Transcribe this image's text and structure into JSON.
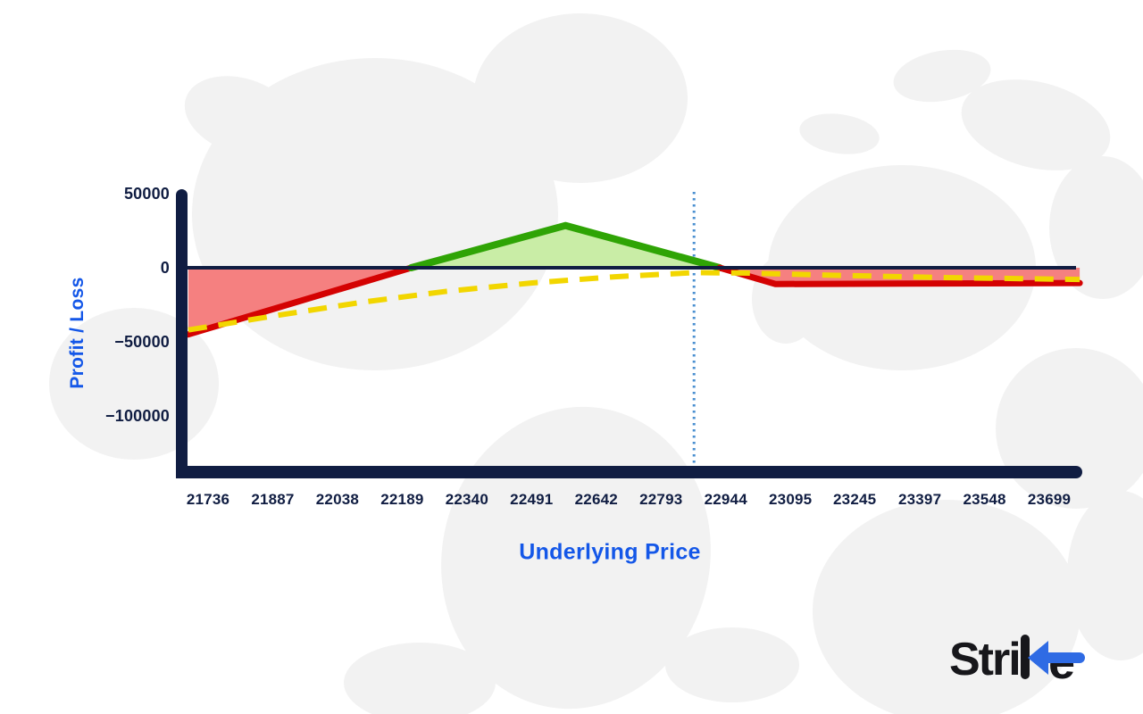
{
  "chart_data": {
    "type": "line",
    "title": "",
    "xlabel": "Underlying Price",
    "ylabel": "Profit / Loss",
    "x_ticks": [
      "21736",
      "21887",
      "22038",
      "22189",
      "22340",
      "22491",
      "22642",
      "22793",
      "22944",
      "23095",
      "23245",
      "23397",
      "23548",
      "23699"
    ],
    "x_tick_values": [
      21736,
      21887,
      22038,
      22189,
      22340,
      22491,
      22642,
      22793,
      22944,
      23095,
      23245,
      23397,
      23548,
      23699
    ],
    "y_ticks": [
      {
        "label": "50000",
        "value": 50000
      },
      {
        "label": "0",
        "value": 0
      },
      {
        "label": "−50000",
        "value": -50000
      },
      {
        "label": "−100000",
        "value": -100000
      }
    ],
    "xlim": [
      21690,
      23770
    ],
    "ylim": [
      -142000,
      53000
    ],
    "grid": false,
    "legend": "none",
    "series": [
      {
        "name": "payoff-at-expiration",
        "style": "solid",
        "color_positive": "#2fa405",
        "color_negative": "#d40202",
        "fill_positive": "#c9eda6",
        "fill_negative": "#f58080",
        "points": [
          [
            21690,
            -45000
          ],
          [
            22210,
            0
          ],
          [
            22570,
            28500
          ],
          [
            22930,
            0
          ],
          [
            23060,
            -11000
          ],
          [
            23770,
            -10300
          ]
        ]
      },
      {
        "name": "current-pnl",
        "style": "dashed",
        "color": "#f2d600",
        "points": [
          [
            21690,
            -42000
          ],
          [
            21890,
            -32500
          ],
          [
            22090,
            -23500
          ],
          [
            22290,
            -16000
          ],
          [
            22490,
            -10300
          ],
          [
            22690,
            -6000
          ],
          [
            22870,
            -3300
          ],
          [
            23000,
            -3600
          ],
          [
            23200,
            -5100
          ],
          [
            23450,
            -6600
          ],
          [
            23770,
            -7900
          ]
        ]
      }
    ],
    "markers": {
      "spot_price_line": 22870,
      "spot_price_line_color": "#4a8fd0",
      "zero_line_value": 0,
      "zero_line_color": "#101d42"
    },
    "key_values": {
      "max_profit": 28500,
      "breakeven_lower": 22210,
      "breakeven_upper": 22930,
      "right_wing_loss": -11000,
      "left_edge_loss": -45000
    }
  },
  "axes": {
    "axis_color": "#101d42",
    "tick_color": "#101d42",
    "title_color": "#1457e8"
  },
  "background": {
    "color": "#ffffff",
    "map_color": "#f2f2f2",
    "map_name": "world-map-silhouette"
  },
  "logo": {
    "wordmark": "Strike",
    "prefix": "Stri",
    "suffix_letter": "e",
    "text_color": "#17171b",
    "arrow_color": "#2f6be4"
  }
}
